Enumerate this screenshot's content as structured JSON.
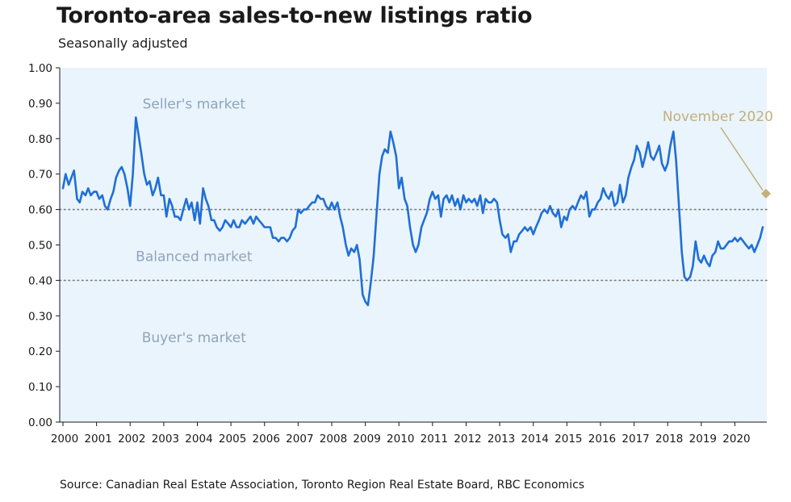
{
  "header": {
    "title": "Toronto-area sales-to-new listings ratio",
    "subtitle": "Seasonally adjusted"
  },
  "footer": {
    "source": "Source:  Canadian Real Estate Association, Toronto Region Real Estate Board, RBC Economics"
  },
  "colors": {
    "line": "#1f6fd6",
    "plot_background": "#eaf4fc",
    "region_label": "#8ea5bd",
    "callout": "#c2b07a",
    "threshold": "#7a7a7a"
  },
  "chart_data": {
    "type": "line",
    "title": "Toronto-area sales-to-new listings ratio",
    "subtitle": "Seasonally adjusted",
    "ylim": [
      0,
      1
    ],
    "xlim": [
      2000.0,
      2020.83
    ],
    "y_ticks": [
      "0.00",
      "0.10",
      "0.20",
      "0.30",
      "0.40",
      "0.50",
      "0.60",
      "0.70",
      "0.80",
      "0.90",
      "1.00"
    ],
    "x_ticks": [
      "2000",
      "2001",
      "2002",
      "2003",
      "2004",
      "2005",
      "2006",
      "2007",
      "2008",
      "2009",
      "2010",
      "2011",
      "2012",
      "2013",
      "2014",
      "2015",
      "2016",
      "2017",
      "2018",
      "2019",
      "2020"
    ],
    "grid": false,
    "thresholds": [
      {
        "value": 0.6,
        "style": "dotted"
      },
      {
        "value": 0.4,
        "style": "dotted"
      }
    ],
    "annotations": [
      {
        "text": "Seller's market",
        "x": 2003.9,
        "y": 0.885
      },
      {
        "text": "Balanced market",
        "x": 2003.9,
        "y": 0.455
      },
      {
        "text": "Buyer's market",
        "x": 2003.9,
        "y": 0.225
      }
    ],
    "callout": {
      "text": "November 2020",
      "x": 2020.83,
      "y": 0.645
    },
    "series": [
      {
        "points": [
          [
            2000.0,
            0.66
          ],
          [
            2000.08,
            0.7
          ],
          [
            2000.17,
            0.67
          ],
          [
            2000.25,
            0.69
          ],
          [
            2000.33,
            0.71
          ],
          [
            2000.42,
            0.63
          ],
          [
            2000.5,
            0.62
          ],
          [
            2000.58,
            0.65
          ],
          [
            2000.67,
            0.64
          ],
          [
            2000.75,
            0.66
          ],
          [
            2000.83,
            0.64
          ],
          [
            2000.92,
            0.65
          ],
          [
            2001.0,
            0.65
          ],
          [
            2001.08,
            0.63
          ],
          [
            2001.17,
            0.64
          ],
          [
            2001.25,
            0.61
          ],
          [
            2001.33,
            0.6
          ],
          [
            2001.42,
            0.63
          ],
          [
            2001.5,
            0.65
          ],
          [
            2001.58,
            0.69
          ],
          [
            2001.67,
            0.71
          ],
          [
            2001.75,
            0.72
          ],
          [
            2001.83,
            0.7
          ],
          [
            2001.92,
            0.66
          ],
          [
            2002.0,
            0.61
          ],
          [
            2002.08,
            0.7
          ],
          [
            2002.17,
            0.86
          ],
          [
            2002.25,
            0.81
          ],
          [
            2002.33,
            0.76
          ],
          [
            2002.42,
            0.7
          ],
          [
            2002.5,
            0.67
          ],
          [
            2002.58,
            0.68
          ],
          [
            2002.67,
            0.64
          ],
          [
            2002.75,
            0.66
          ],
          [
            2002.83,
            0.69
          ],
          [
            2002.92,
            0.64
          ],
          [
            2003.0,
            0.64
          ],
          [
            2003.08,
            0.58
          ],
          [
            2003.17,
            0.63
          ],
          [
            2003.25,
            0.61
          ],
          [
            2003.33,
            0.58
          ],
          [
            2003.42,
            0.58
          ],
          [
            2003.5,
            0.57
          ],
          [
            2003.58,
            0.6
          ],
          [
            2003.67,
            0.63
          ],
          [
            2003.75,
            0.6
          ],
          [
            2003.83,
            0.62
          ],
          [
            2003.92,
            0.57
          ],
          [
            2004.0,
            0.62
          ],
          [
            2004.08,
            0.56
          ],
          [
            2004.17,
            0.66
          ],
          [
            2004.25,
            0.63
          ],
          [
            2004.33,
            0.61
          ],
          [
            2004.42,
            0.57
          ],
          [
            2004.5,
            0.57
          ],
          [
            2004.58,
            0.55
          ],
          [
            2004.67,
            0.54
          ],
          [
            2004.75,
            0.55
          ],
          [
            2004.83,
            0.57
          ],
          [
            2004.92,
            0.56
          ],
          [
            2005.0,
            0.55
          ],
          [
            2005.08,
            0.57
          ],
          [
            2005.17,
            0.55
          ],
          [
            2005.25,
            0.55
          ],
          [
            2005.33,
            0.57
          ],
          [
            2005.42,
            0.56
          ],
          [
            2005.5,
            0.57
          ],
          [
            2005.58,
            0.58
          ],
          [
            2005.67,
            0.56
          ],
          [
            2005.75,
            0.58
          ],
          [
            2005.83,
            0.57
          ],
          [
            2005.92,
            0.56
          ],
          [
            2006.0,
            0.55
          ],
          [
            2006.08,
            0.55
          ],
          [
            2006.17,
            0.55
          ],
          [
            2006.25,
            0.52
          ],
          [
            2006.33,
            0.52
          ],
          [
            2006.42,
            0.51
          ],
          [
            2006.5,
            0.52
          ],
          [
            2006.58,
            0.52
          ],
          [
            2006.67,
            0.51
          ],
          [
            2006.75,
            0.52
          ],
          [
            2006.83,
            0.54
          ],
          [
            2006.92,
            0.55
          ],
          [
            2007.0,
            0.6
          ],
          [
            2007.08,
            0.59
          ],
          [
            2007.17,
            0.6
          ],
          [
            2007.25,
            0.6
          ],
          [
            2007.33,
            0.61
          ],
          [
            2007.42,
            0.62
          ],
          [
            2007.5,
            0.62
          ],
          [
            2007.58,
            0.64
          ],
          [
            2007.67,
            0.63
          ],
          [
            2007.75,
            0.63
          ],
          [
            2007.83,
            0.61
          ],
          [
            2007.92,
            0.6
          ],
          [
            2008.0,
            0.62
          ],
          [
            2008.08,
            0.6
          ],
          [
            2008.17,
            0.62
          ],
          [
            2008.25,
            0.58
          ],
          [
            2008.33,
            0.55
          ],
          [
            2008.42,
            0.5
          ],
          [
            2008.5,
            0.47
          ],
          [
            2008.58,
            0.49
          ],
          [
            2008.67,
            0.48
          ],
          [
            2008.75,
            0.5
          ],
          [
            2008.83,
            0.46
          ],
          [
            2008.92,
            0.36
          ],
          [
            2009.0,
            0.34
          ],
          [
            2009.08,
            0.33
          ],
          [
            2009.17,
            0.4
          ],
          [
            2009.25,
            0.47
          ],
          [
            2009.33,
            0.58
          ],
          [
            2009.42,
            0.7
          ],
          [
            2009.5,
            0.75
          ],
          [
            2009.58,
            0.77
          ],
          [
            2009.67,
            0.76
          ],
          [
            2009.75,
            0.82
          ],
          [
            2009.83,
            0.79
          ],
          [
            2009.92,
            0.75
          ],
          [
            2010.0,
            0.66
          ],
          [
            2010.08,
            0.69
          ],
          [
            2010.17,
            0.63
          ],
          [
            2010.25,
            0.61
          ],
          [
            2010.33,
            0.55
          ],
          [
            2010.42,
            0.5
          ],
          [
            2010.5,
            0.48
          ],
          [
            2010.58,
            0.5
          ],
          [
            2010.67,
            0.55
          ],
          [
            2010.75,
            0.57
          ],
          [
            2010.83,
            0.59
          ],
          [
            2010.92,
            0.63
          ],
          [
            2011.0,
            0.65
          ],
          [
            2011.08,
            0.63
          ],
          [
            2011.17,
            0.64
          ],
          [
            2011.25,
            0.58
          ],
          [
            2011.33,
            0.63
          ],
          [
            2011.42,
            0.64
          ],
          [
            2011.5,
            0.62
          ],
          [
            2011.58,
            0.64
          ],
          [
            2011.67,
            0.61
          ],
          [
            2011.75,
            0.63
          ],
          [
            2011.83,
            0.6
          ],
          [
            2011.92,
            0.64
          ],
          [
            2012.0,
            0.62
          ],
          [
            2012.08,
            0.63
          ],
          [
            2012.17,
            0.62
          ],
          [
            2012.25,
            0.63
          ],
          [
            2012.33,
            0.61
          ],
          [
            2012.42,
            0.64
          ],
          [
            2012.5,
            0.59
          ],
          [
            2012.58,
            0.63
          ],
          [
            2012.67,
            0.62
          ],
          [
            2012.75,
            0.62
          ],
          [
            2012.83,
            0.63
          ],
          [
            2012.92,
            0.62
          ],
          [
            2013.0,
            0.57
          ],
          [
            2013.08,
            0.53
          ],
          [
            2013.17,
            0.52
          ],
          [
            2013.25,
            0.53
          ],
          [
            2013.33,
            0.48
          ],
          [
            2013.42,
            0.51
          ],
          [
            2013.5,
            0.51
          ],
          [
            2013.58,
            0.53
          ],
          [
            2013.67,
            0.54
          ],
          [
            2013.75,
            0.55
          ],
          [
            2013.83,
            0.54
          ],
          [
            2013.92,
            0.55
          ],
          [
            2014.0,
            0.53
          ],
          [
            2014.08,
            0.55
          ],
          [
            2014.17,
            0.57
          ],
          [
            2014.25,
            0.59
          ],
          [
            2014.33,
            0.6
          ],
          [
            2014.42,
            0.59
          ],
          [
            2014.5,
            0.61
          ],
          [
            2014.58,
            0.59
          ],
          [
            2014.67,
            0.58
          ],
          [
            2014.75,
            0.6
          ],
          [
            2014.83,
            0.55
          ],
          [
            2014.92,
            0.58
          ],
          [
            2015.0,
            0.57
          ],
          [
            2015.08,
            0.6
          ],
          [
            2015.17,
            0.61
          ],
          [
            2015.25,
            0.6
          ],
          [
            2015.33,
            0.62
          ],
          [
            2015.42,
            0.64
          ],
          [
            2015.5,
            0.63
          ],
          [
            2015.58,
            0.65
          ],
          [
            2015.67,
            0.58
          ],
          [
            2015.75,
            0.6
          ],
          [
            2015.83,
            0.6
          ],
          [
            2015.92,
            0.62
          ],
          [
            2016.0,
            0.63
          ],
          [
            2016.08,
            0.66
          ],
          [
            2016.17,
            0.64
          ],
          [
            2016.25,
            0.63
          ],
          [
            2016.33,
            0.65
          ],
          [
            2016.42,
            0.61
          ],
          [
            2016.5,
            0.62
          ],
          [
            2016.58,
            0.67
          ],
          [
            2016.67,
            0.62
          ],
          [
            2016.75,
            0.64
          ],
          [
            2016.83,
            0.69
          ],
          [
            2016.92,
            0.72
          ],
          [
            2017.0,
            0.74
          ],
          [
            2017.08,
            0.78
          ],
          [
            2017.17,
            0.76
          ],
          [
            2017.25,
            0.72
          ],
          [
            2017.33,
            0.75
          ],
          [
            2017.42,
            0.79
          ],
          [
            2017.5,
            0.75
          ],
          [
            2017.58,
            0.74
          ],
          [
            2017.67,
            0.76
          ],
          [
            2017.75,
            0.78
          ],
          [
            2017.83,
            0.73
          ],
          [
            2017.92,
            0.71
          ],
          [
            2018.0,
            0.73
          ],
          [
            2018.08,
            0.78
          ],
          [
            2018.17,
            0.82
          ],
          [
            2018.25,
            0.74
          ],
          [
            2018.33,
            0.62
          ],
          [
            2018.42,
            0.48
          ],
          [
            2018.5,
            0.41
          ],
          [
            2018.58,
            0.4
          ],
          [
            2018.67,
            0.41
          ],
          [
            2018.75,
            0.44
          ],
          [
            2018.83,
            0.51
          ],
          [
            2018.92,
            0.46
          ],
          [
            2019.0,
            0.45
          ],
          [
            2019.08,
            0.47
          ],
          [
            2019.17,
            0.45
          ],
          [
            2019.25,
            0.44
          ],
          [
            2019.33,
            0.47
          ],
          [
            2019.42,
            0.48
          ],
          [
            2019.5,
            0.51
          ],
          [
            2019.58,
            0.49
          ],
          [
            2019.67,
            0.49
          ],
          [
            2019.75,
            0.5
          ],
          [
            2019.83,
            0.51
          ],
          [
            2019.92,
            0.51
          ],
          [
            2020.0,
            0.52
          ],
          [
            2020.08,
            0.51
          ],
          [
            2020.17,
            0.52
          ],
          [
            2020.25,
            0.51
          ],
          [
            2020.33,
            0.5
          ],
          [
            2020.42,
            0.49
          ],
          [
            2020.5,
            0.5
          ],
          [
            2020.58,
            0.48
          ],
          [
            2020.67,
            0.5
          ],
          [
            2020.75,
            0.52
          ],
          [
            2020.83,
            0.55
          ]
        ]
      }
    ]
  }
}
